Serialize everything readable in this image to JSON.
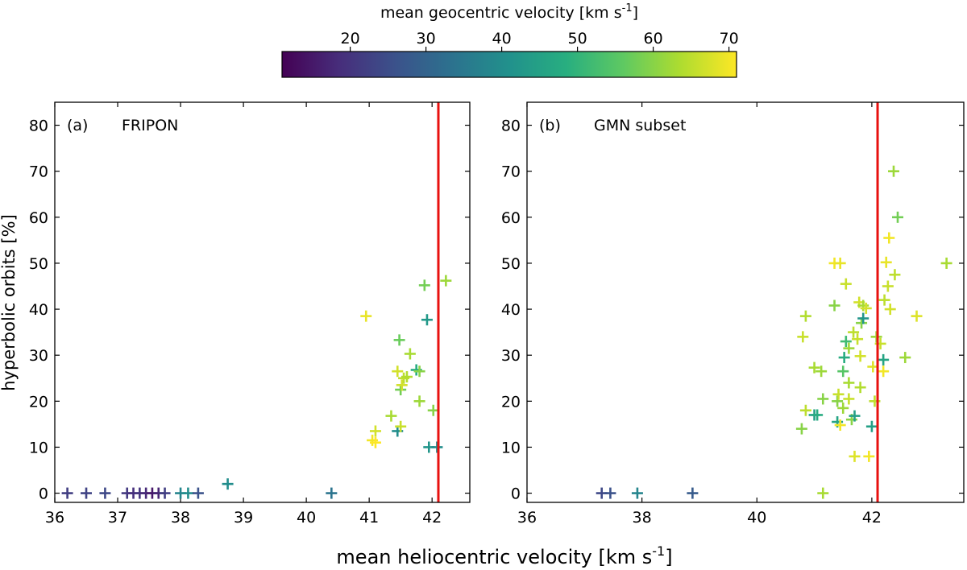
{
  "colorbar": {
    "title": "mean geocentric velocity [km s",
    "title_sup": "-1",
    "title_end": "]",
    "range": [
      11,
      71
    ],
    "ticks": [
      20,
      30,
      40,
      50,
      60,
      70
    ],
    "colormap": "viridis"
  },
  "x_axis_title": "mean heliocentric velocity [km s",
  "x_axis_title_sup": "-1",
  "x_axis_title_end": "]",
  "y_axis_title": "hyperbolic orbits [%]",
  "threshold_line": {
    "x": 42.1,
    "color": "#e8110f"
  },
  "chart_data": [
    {
      "type": "scatter",
      "panel_label": "(a)",
      "title": "FRIPON",
      "xlim": [
        36,
        42.6
      ],
      "ylim": [
        -2,
        85
      ],
      "xticks": [
        36,
        37,
        38,
        39,
        40,
        41,
        42
      ],
      "yticks": [
        0,
        10,
        20,
        30,
        40,
        50,
        60,
        70,
        80
      ],
      "marker": "plus",
      "points": [
        {
          "x": 36.2,
          "y": 0,
          "c": 22
        },
        {
          "x": 36.5,
          "y": 0,
          "c": 23
        },
        {
          "x": 36.8,
          "y": 0,
          "c": 24
        },
        {
          "x": 37.15,
          "y": 0,
          "c": 21
        },
        {
          "x": 37.25,
          "y": 0,
          "c": 19
        },
        {
          "x": 37.35,
          "y": 0,
          "c": 20
        },
        {
          "x": 37.45,
          "y": 0,
          "c": 18
        },
        {
          "x": 37.55,
          "y": 0,
          "c": 15
        },
        {
          "x": 37.65,
          "y": 0,
          "c": 17
        },
        {
          "x": 37.75,
          "y": 0,
          "c": 22
        },
        {
          "x": 38.0,
          "y": 0,
          "c": 38
        },
        {
          "x": 38.12,
          "y": 0,
          "c": 40
        },
        {
          "x": 38.28,
          "y": 0,
          "c": 26
        },
        {
          "x": 38.75,
          "y": 2,
          "c": 40
        },
        {
          "x": 40.4,
          "y": 0,
          "c": 34
        },
        {
          "x": 40.95,
          "y": 38.5,
          "c": 69
        },
        {
          "x": 41.05,
          "y": 11.5,
          "c": 70
        },
        {
          "x": 41.1,
          "y": 11,
          "c": 71
        },
        {
          "x": 41.1,
          "y": 13.5,
          "c": 67
        },
        {
          "x": 41.35,
          "y": 16.8,
          "c": 63
        },
        {
          "x": 41.45,
          "y": 26.5,
          "c": 67
        },
        {
          "x": 41.45,
          "y": 13.5,
          "c": 40
        },
        {
          "x": 41.48,
          "y": 33.3,
          "c": 57
        },
        {
          "x": 41.5,
          "y": 22.5,
          "c": 58
        },
        {
          "x": 41.5,
          "y": 14.5,
          "c": 66
        },
        {
          "x": 41.52,
          "y": 23.5,
          "c": 67
        },
        {
          "x": 41.55,
          "y": 25,
          "c": 65
        },
        {
          "x": 41.6,
          "y": 25.3,
          "c": 64
        },
        {
          "x": 41.65,
          "y": 30.3,
          "c": 63
        },
        {
          "x": 41.75,
          "y": 26.8,
          "c": 48
        },
        {
          "x": 41.8,
          "y": 26.5,
          "c": 60
        },
        {
          "x": 41.8,
          "y": 20,
          "c": 62
        },
        {
          "x": 41.88,
          "y": 45.2,
          "c": 58
        },
        {
          "x": 41.92,
          "y": 37.7,
          "c": 43
        },
        {
          "x": 41.95,
          "y": 10,
          "c": 42
        },
        {
          "x": 42.08,
          "y": 10,
          "c": 40
        },
        {
          "x": 42.02,
          "y": 18,
          "c": 60
        },
        {
          "x": 42.22,
          "y": 46.2,
          "c": 62
        }
      ]
    },
    {
      "type": "scatter",
      "panel_label": "(b)",
      "title": "GMN subset",
      "xlim": [
        36,
        43.6
      ],
      "ylim": [
        -2,
        85
      ],
      "xticks": [
        36,
        38,
        40,
        42
      ],
      "yticks": [
        0,
        10,
        20,
        30,
        40,
        50,
        60,
        70,
        80
      ],
      "marker": "plus",
      "points": [
        {
          "x": 37.3,
          "y": 0,
          "c": 24
        },
        {
          "x": 37.45,
          "y": 0,
          "c": 26
        },
        {
          "x": 37.92,
          "y": 0,
          "c": 38
        },
        {
          "x": 38.88,
          "y": 0,
          "c": 28
        },
        {
          "x": 41.15,
          "y": 0,
          "c": 63
        },
        {
          "x": 40.78,
          "y": 14,
          "c": 60
        },
        {
          "x": 40.85,
          "y": 18,
          "c": 65
        },
        {
          "x": 40.8,
          "y": 34,
          "c": 66
        },
        {
          "x": 40.85,
          "y": 38.5,
          "c": 64
        },
        {
          "x": 41.0,
          "y": 17,
          "c": 45
        },
        {
          "x": 41.05,
          "y": 17,
          "c": 48
        },
        {
          "x": 41.0,
          "y": 27.3,
          "c": 63
        },
        {
          "x": 41.15,
          "y": 20.5,
          "c": 60
        },
        {
          "x": 41.12,
          "y": 26.5,
          "c": 62
        },
        {
          "x": 41.35,
          "y": 50,
          "c": 70
        },
        {
          "x": 41.45,
          "y": 50,
          "c": 69
        },
        {
          "x": 41.35,
          "y": 40.8,
          "c": 60
        },
        {
          "x": 41.4,
          "y": 15.5,
          "c": 46
        },
        {
          "x": 41.4,
          "y": 20,
          "c": 60
        },
        {
          "x": 41.42,
          "y": 21.5,
          "c": 66
        },
        {
          "x": 41.45,
          "y": 14.8,
          "c": 70
        },
        {
          "x": 41.5,
          "y": 18.5,
          "c": 62
        },
        {
          "x": 41.5,
          "y": 26.5,
          "c": 55
        },
        {
          "x": 41.52,
          "y": 29.5,
          "c": 48
        },
        {
          "x": 41.55,
          "y": 33,
          "c": 52
        },
        {
          "x": 41.55,
          "y": 45.5,
          "c": 66
        },
        {
          "x": 41.6,
          "y": 20.5,
          "c": 66
        },
        {
          "x": 41.6,
          "y": 24,
          "c": 63
        },
        {
          "x": 41.6,
          "y": 31.5,
          "c": 62
        },
        {
          "x": 41.65,
          "y": 16,
          "c": 60
        },
        {
          "x": 41.68,
          "y": 35,
          "c": 65
        },
        {
          "x": 41.7,
          "y": 8,
          "c": 68
        },
        {
          "x": 41.7,
          "y": 16.8,
          "c": 45
        },
        {
          "x": 41.75,
          "y": 33.5,
          "c": 66
        },
        {
          "x": 41.78,
          "y": 41.5,
          "c": 67
        },
        {
          "x": 41.8,
          "y": 23,
          "c": 64
        },
        {
          "x": 41.8,
          "y": 29.8,
          "c": 67
        },
        {
          "x": 41.82,
          "y": 37,
          "c": 60
        },
        {
          "x": 41.85,
          "y": 40.8,
          "c": 63
        },
        {
          "x": 41.85,
          "y": 38,
          "c": 42
        },
        {
          "x": 41.9,
          "y": 40.2,
          "c": 67
        },
        {
          "x": 41.95,
          "y": 8,
          "c": 70
        },
        {
          "x": 42.0,
          "y": 14.5,
          "c": 45
        },
        {
          "x": 42.02,
          "y": 27.5,
          "c": 68
        },
        {
          "x": 42.05,
          "y": 20,
          "c": 65
        },
        {
          "x": 42.08,
          "y": 34,
          "c": 62
        },
        {
          "x": 42.15,
          "y": 32.5,
          "c": 66
        },
        {
          "x": 42.2,
          "y": 26.5,
          "c": 70
        },
        {
          "x": 42.2,
          "y": 29,
          "c": 46
        },
        {
          "x": 42.22,
          "y": 42,
          "c": 65
        },
        {
          "x": 42.25,
          "y": 50.2,
          "c": 69
        },
        {
          "x": 42.28,
          "y": 45,
          "c": 66
        },
        {
          "x": 42.3,
          "y": 55.5,
          "c": 70
        },
        {
          "x": 42.32,
          "y": 40,
          "c": 67
        },
        {
          "x": 42.38,
          "y": 70,
          "c": 62
        },
        {
          "x": 42.4,
          "y": 47.5,
          "c": 65
        },
        {
          "x": 42.45,
          "y": 60,
          "c": 58
        },
        {
          "x": 42.58,
          "y": 29.5,
          "c": 62
        },
        {
          "x": 42.78,
          "y": 38.5,
          "c": 68
        },
        {
          "x": 43.3,
          "y": 50,
          "c": 63
        }
      ]
    }
  ]
}
